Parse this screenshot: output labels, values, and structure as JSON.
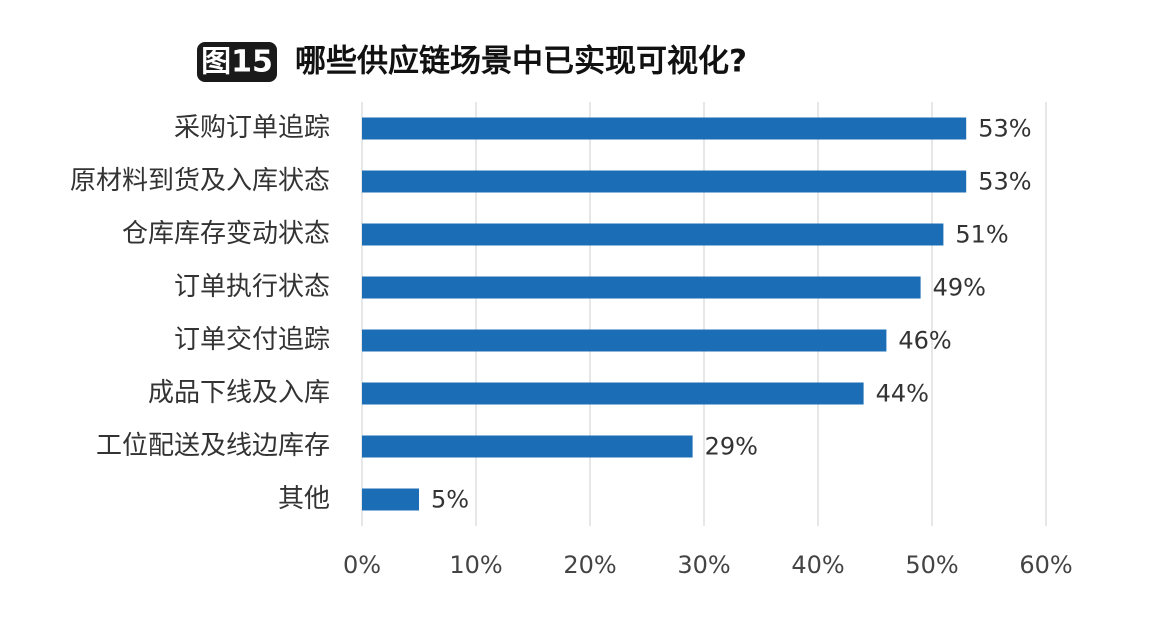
{
  "chart_data": {
    "type": "hbar",
    "figure_label": "图15",
    "title": "哪些供应链场景中已实现可视化?",
    "categories": [
      "采购订单追踪",
      "原材料到货及入库状态",
      "仓库库存变动状态",
      "订单执行状态",
      "订单交付追踪",
      "成品下线及入库",
      "工位配送及线边库存",
      "其他"
    ],
    "values": [
      53,
      53,
      51,
      49,
      46,
      44,
      29,
      5
    ],
    "value_labels": [
      "53%",
      "53%",
      "51%",
      "49%",
      "46%",
      "44%",
      "29%",
      "5%"
    ],
    "color": "#1b6db6",
    "xlim": [
      0,
      60
    ],
    "xticks": [
      {
        "value": 0,
        "label": "0%"
      },
      {
        "value": 10,
        "label": "10%"
      },
      {
        "value": 20,
        "label": "20%"
      },
      {
        "value": 30,
        "label": "30%"
      },
      {
        "value": 40,
        "label": "40%"
      },
      {
        "value": 50,
        "label": "50%"
      },
      {
        "value": 60,
        "label": "60%"
      }
    ],
    "grid": true
  }
}
